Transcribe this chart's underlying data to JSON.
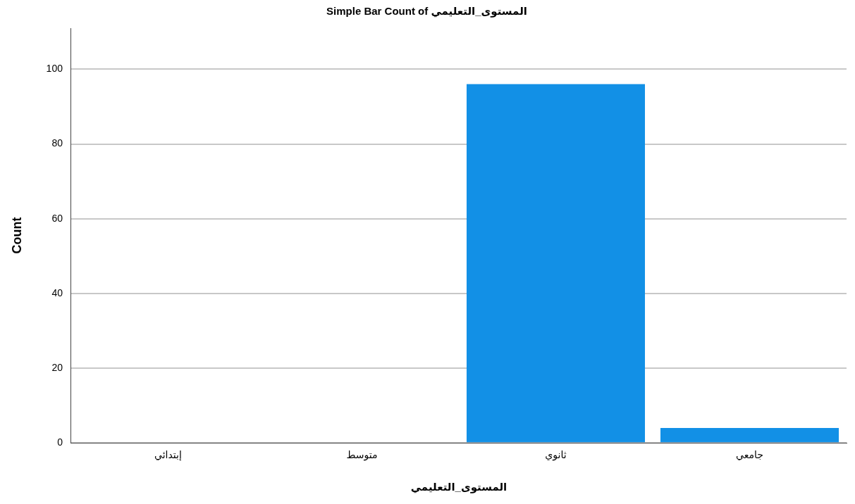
{
  "chart_data": {
    "type": "bar",
    "title": "Simple Bar Count of المستوى_التعليمي",
    "xlabel": "المستوى_التعليمي",
    "ylabel": "Count",
    "categories": [
      "إبتدائي",
      "متوسط",
      "ثانوي",
      "جامعي"
    ],
    "values": [
      0,
      0,
      96,
      4
    ],
    "color": "#1290e6",
    "ylim": [
      0,
      111
    ],
    "yticks": [
      0,
      20,
      40,
      60,
      80,
      100
    ],
    "grid": "y"
  }
}
